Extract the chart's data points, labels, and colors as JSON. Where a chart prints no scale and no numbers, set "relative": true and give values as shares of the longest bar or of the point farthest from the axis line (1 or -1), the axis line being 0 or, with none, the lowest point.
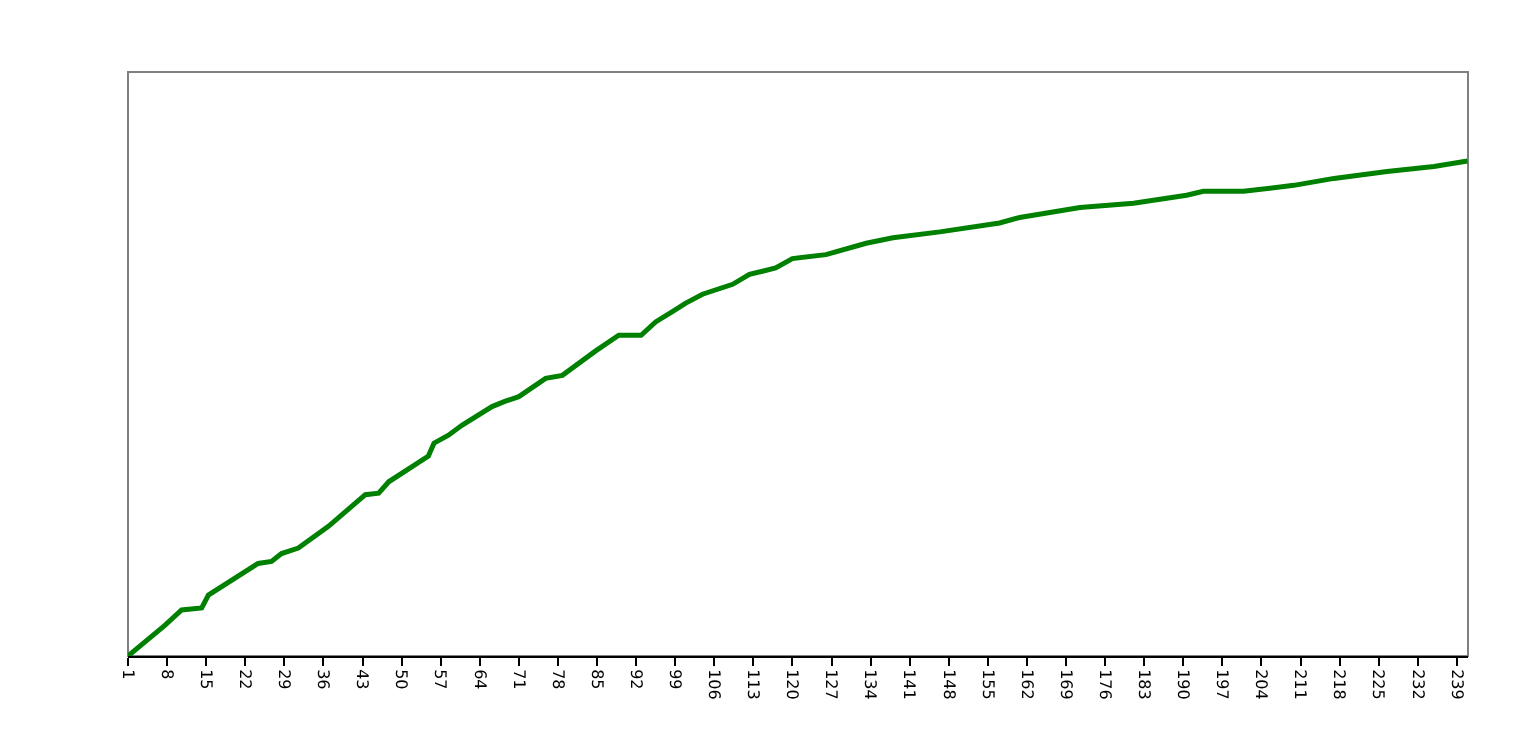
{
  "chart_data": {
    "type": "line",
    "relative": true,
    "marker": "none",
    "line_style": "solid",
    "xlim": [
      1,
      241
    ],
    "xticks": [
      1,
      8,
      15,
      22,
      29,
      36,
      43,
      50,
      57,
      64,
      71,
      78,
      85,
      92,
      99,
      106,
      113,
      120,
      127,
      134,
      141,
      148,
      155,
      162,
      169,
      176,
      183,
      190,
      197,
      204,
      211,
      218,
      225,
      232,
      239
    ],
    "series": [
      {
        "color": "#008000",
        "x": [
          1,
          7.6,
          10.6,
          14.2,
          15.4,
          24.3,
          26.7,
          28.5,
          31.5,
          36.9,
          43.5,
          45.9,
          47.7,
          54.8,
          55.8,
          58.4,
          60.8,
          66.2,
          68.6,
          71,
          75.8,
          78.8,
          84.7,
          88.9,
          92.9,
          95.5,
          98.5,
          100.9,
          103.9,
          109.3,
          112.3,
          117,
          120,
          126,
          133.2,
          138,
          146.4,
          157.1,
          160.7,
          171.5,
          181.1,
          190.6,
          193.6,
          200.8,
          209.8,
          217,
          226.5,
          234.9,
          240.9
        ],
        "values": [
          0,
          0.062,
          0.093,
          0.097,
          0.123,
          0.187,
          0.191,
          0.207,
          0.218,
          0.262,
          0.326,
          0.329,
          0.352,
          0.404,
          0.43,
          0.446,
          0.466,
          0.504,
          0.515,
          0.524,
          0.561,
          0.567,
          0.616,
          0.648,
          0.648,
          0.675,
          0.696,
          0.713,
          0.731,
          0.751,
          0.771,
          0.784,
          0.803,
          0.811,
          0.834,
          0.845,
          0.857,
          0.875,
          0.886,
          0.906,
          0.915,
          0.931,
          0.939,
          0.939,
          0.951,
          0.965,
          0.979,
          0.989,
          1.0
        ]
      }
    ]
  }
}
